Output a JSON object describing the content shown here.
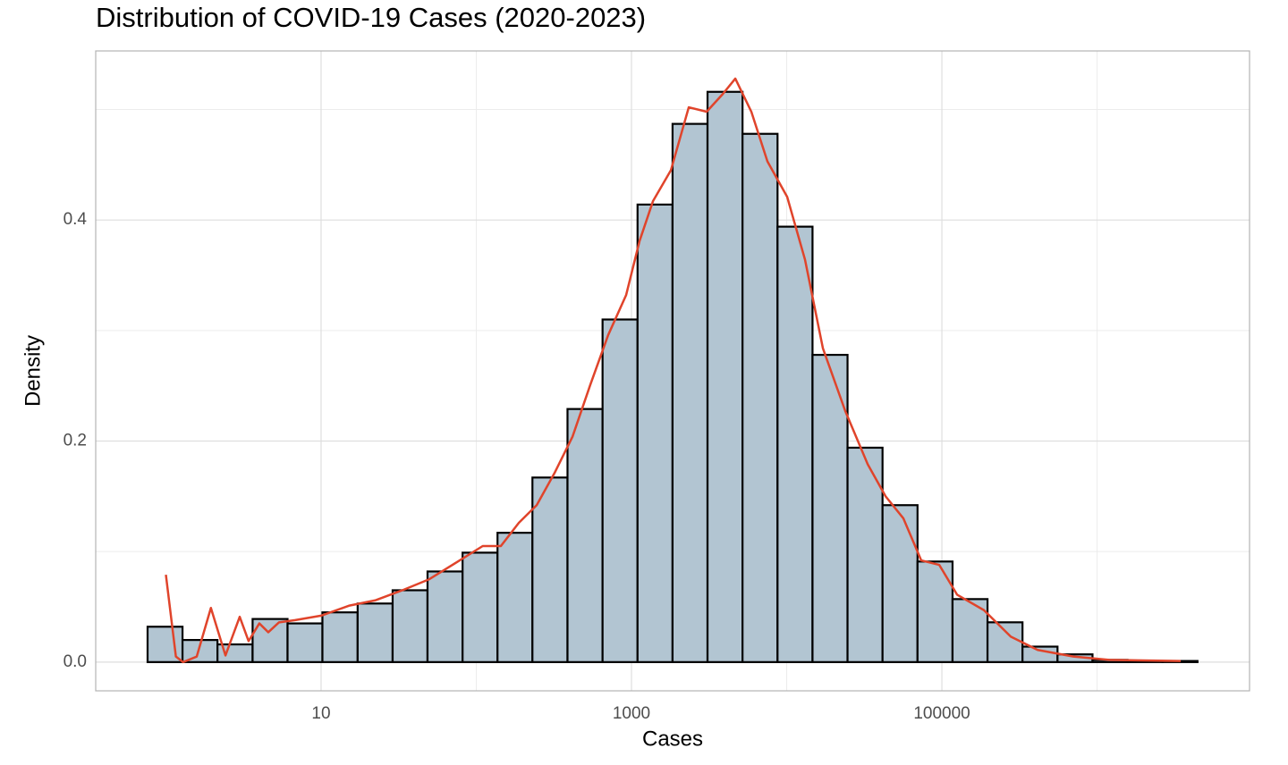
{
  "chart_data": {
    "type": "histogram",
    "title": "Distribution of COVID-19 Cases (2020-2023)",
    "x_label": "Cases",
    "y_label": "Density",
    "log_x": true,
    "grid": true,
    "xlim": [
      0.353,
      9600000
    ],
    "ylim": [
      -0.026,
      0.553
    ],
    "xticks": [
      10,
      1000,
      100000
    ],
    "minor_xticks": [
      100,
      10000,
      1000000
    ],
    "yticks": [
      {
        "value": 0,
        "label": "0.0"
      },
      0.2,
      0.4
    ],
    "minor_yticks": [
      0.1,
      0.3,
      0.5
    ],
    "color": "#b2c5d2",
    "edge_color": "#000000",
    "bins": [
      0.762,
      1.28,
      2.15,
      3.62,
      6.08,
      10.2,
      17.2,
      28.9,
      48.5,
      81.6,
      137,
      230,
      387,
      651,
      1094,
      1839,
      3090,
      5194,
      8730,
      14670,
      24660,
      41450,
      69660,
      117100,
      196800,
      330700,
      555900,
      934300,
      1570000,
      2640000,
      4436000
    ],
    "values": [
      0.032,
      0.02,
      0.016,
      0.039,
      0.035,
      0.045,
      0.053,
      0.065,
      0.082,
      0.099,
      0.117,
      0.167,
      0.229,
      0.31,
      0.414,
      0.487,
      0.516,
      0.478,
      0.394,
      0.278,
      0.194,
      0.142,
      0.091,
      0.057,
      0.036,
      0.014,
      0.007,
      0.002,
      0.001,
      0.001
    ],
    "density_curve": {
      "color": "#e0442b",
      "x": [
        1,
        1.16,
        1.29,
        1.58,
        1.95,
        2.42,
        2.99,
        3.41,
        4.0,
        4.57,
        5.36,
        6.81,
        10,
        15.1,
        22.5,
        33.4,
        49.8,
        74.1,
        110,
        144,
        188,
        245,
        319,
        417,
        543,
        708,
        923,
        1127,
        1375,
        1794,
        2339,
        3050,
        3872,
        4666,
        5919,
        7516,
        10070,
        13130,
        17110,
        23870,
        33270,
        43380,
        56500,
        73620,
        96100,
        125300,
        186600,
        278000,
        414000,
        703000,
        1197000,
        3459000
      ],
      "values": [
        0.079,
        0.005,
        0,
        0.005,
        0.049,
        0.006,
        0.041,
        0.019,
        0.035,
        0.027,
        0.036,
        0.038,
        0.042,
        0.051,
        0.056,
        0.065,
        0.075,
        0.09,
        0.105,
        0.105,
        0.126,
        0.142,
        0.171,
        0.204,
        0.251,
        0.296,
        0.332,
        0.381,
        0.417,
        0.445,
        0.502,
        0.498,
        0.514,
        0.528,
        0.498,
        0.453,
        0.421,
        0.364,
        0.284,
        0.227,
        0.179,
        0.15,
        0.13,
        0.092,
        0.088,
        0.061,
        0.047,
        0.023,
        0.011,
        0.005,
        0.002,
        0.001
      ]
    }
  }
}
